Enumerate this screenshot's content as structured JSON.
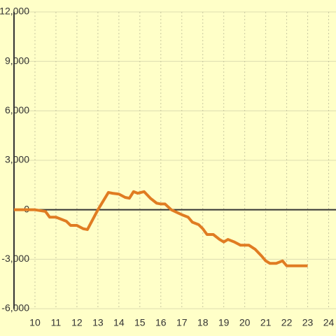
{
  "chart_data": {
    "type": "line",
    "x": [
      9,
      10,
      10.5,
      10.7,
      11,
      11.5,
      11.7,
      12,
      12.3,
      12.5,
      13,
      13.5,
      13.7,
      14,
      14.3,
      14.5,
      14.7,
      14.9,
      15.2,
      15.5,
      15.8,
      16,
      16.2,
      16.5,
      17,
      17.3,
      17.5,
      17.8,
      18,
      18.2,
      18.5,
      18.8,
      19,
      19.2,
      19.5,
      19.8,
      20.2,
      20.5,
      20.8,
      21,
      21.2,
      21.5,
      21.8,
      22,
      22.5,
      23
    ],
    "series": [
      {
        "color": "#e07c22",
        "values": [
          0,
          0,
          -100,
          -450,
          -450,
          -700,
          -950,
          -950,
          -1150,
          -1200,
          0,
          1050,
          1000,
          950,
          750,
          700,
          1100,
          1000,
          1100,
          700,
          400,
          350,
          350,
          0,
          -300,
          -450,
          -750,
          -900,
          -1150,
          -1500,
          -1500,
          -1800,
          -1950,
          -1800,
          -1950,
          -2150,
          -2150,
          -2400,
          -2800,
          -3100,
          -3250,
          -3250,
          -3100,
          -3400,
          -3400,
          -3400
        ]
      }
    ],
    "xlim": [
      9,
      24.35
    ],
    "xticks": [
      10,
      11,
      12,
      13,
      14,
      15,
      16,
      17,
      18,
      19,
      20,
      21,
      22,
      23,
      24
    ],
    "ylim": [
      -6000,
      12000
    ],
    "yticks": [
      {
        "value": -6000,
        "label": "-6,000"
      },
      {
        "value": -3000,
        "label": "-3,000"
      },
      0,
      {
        "value": 3000,
        "label": "3,000"
      },
      {
        "value": 6000,
        "label": "6,000"
      },
      {
        "value": 9000,
        "label": "9,000"
      },
      {
        "value": 12000,
        "label": "12,000"
      }
    ],
    "grid": true
  }
}
